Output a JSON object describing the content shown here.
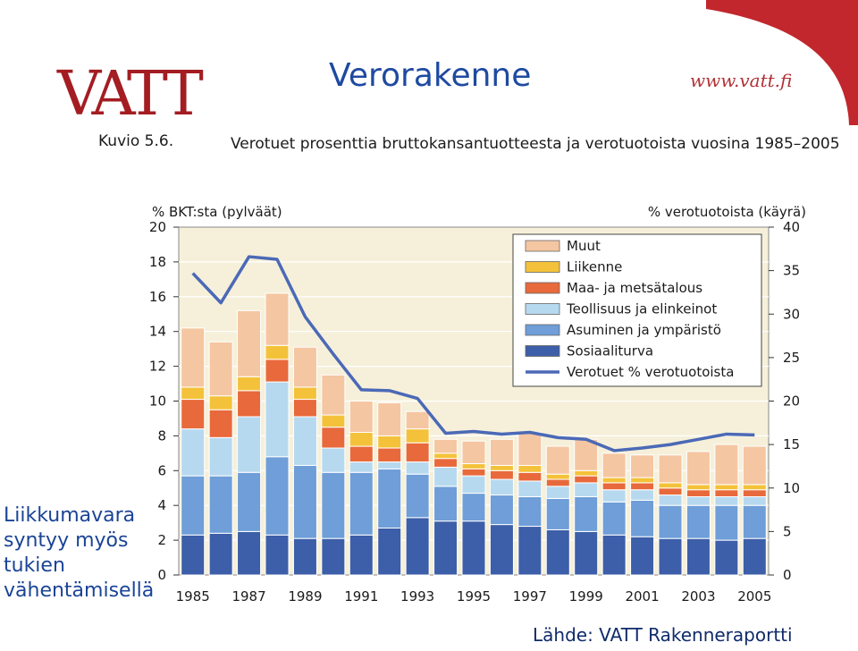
{
  "header": {
    "logo_text": "VATT",
    "title": "Verorakenne",
    "url": "www.vatt.fi"
  },
  "figure": {
    "label": "Kuvio 5.6.",
    "caption": "Verotuet prosenttia bruttokansantuotteesta ja verotuotoista vuosina 1985–2005"
  },
  "side_note": [
    "Liikkumavara",
    "syntyy myös",
    "tukien",
    "vähentämisellä"
  ],
  "source": "Lähde: VATT  Rakenneraportti",
  "colors": {
    "accent_red": "#a31d22",
    "title_blue": "#1e4aa0",
    "plot_bg": "#f6f0da"
  },
  "chart_data": {
    "type": "bar",
    "title": "",
    "left_axis_label": "% BKT:sta (pylväät)",
    "right_axis_label": "% verotuotoista (käyrä)",
    "ylim": [
      0,
      20
    ],
    "y2lim": [
      0,
      40
    ],
    "yticks": [
      0,
      2,
      4,
      6,
      8,
      10,
      12,
      14,
      16,
      18,
      20
    ],
    "y2ticks": [
      0,
      5,
      10,
      15,
      20,
      25,
      30,
      35,
      40
    ],
    "categories": [
      1985,
      1986,
      1987,
      1988,
      1989,
      1990,
      1991,
      1992,
      1993,
      1994,
      1995,
      1996,
      1997,
      1998,
      1999,
      2000,
      2001,
      2002,
      2003,
      2004,
      2005
    ],
    "xtick_labels": [
      "1985",
      "1987",
      "1989",
      "1991",
      "1993",
      "1995",
      "1997",
      "1999",
      "2001",
      "2003",
      "2005"
    ],
    "stacked": true,
    "legend_position": "top-right",
    "series": [
      {
        "name": "Sosiaaliturva",
        "color": "#3d5ea8",
        "values": [
          2.3,
          2.4,
          2.5,
          2.3,
          2.1,
          2.1,
          2.3,
          2.7,
          3.3,
          3.1,
          3.1,
          2.9,
          2.8,
          2.6,
          2.5,
          2.3,
          2.2,
          2.1,
          2.1,
          2.0,
          2.1
        ]
      },
      {
        "name": "Asuminen ja ympäristö",
        "color": "#6f9ed8",
        "values": [
          3.4,
          3.3,
          3.4,
          4.5,
          4.2,
          3.8,
          3.6,
          3.4,
          2.5,
          2.0,
          1.6,
          1.7,
          1.7,
          1.8,
          2.0,
          1.9,
          2.1,
          1.9,
          1.9,
          2.0,
          1.9
        ]
      },
      {
        "name": "Teollisuus ja elinkeinot",
        "color": "#b7d9ef",
        "values": [
          2.7,
          2.2,
          3.2,
          4.3,
          2.8,
          1.4,
          0.6,
          0.4,
          0.7,
          1.1,
          1.0,
          0.9,
          0.9,
          0.7,
          0.8,
          0.7,
          0.6,
          0.6,
          0.5,
          0.5,
          0.5
        ]
      },
      {
        "name": "Maa- ja metsätalous",
        "color": "#e8693b",
        "values": [
          1.7,
          1.6,
          1.5,
          1.3,
          1.0,
          1.2,
          0.9,
          0.8,
          1.1,
          0.5,
          0.4,
          0.5,
          0.5,
          0.4,
          0.4,
          0.4,
          0.4,
          0.4,
          0.4,
          0.4,
          0.4
        ]
      },
      {
        "name": "Liikenne",
        "color": "#f4c23a",
        "values": [
          0.7,
          0.8,
          0.8,
          0.8,
          0.7,
          0.7,
          0.8,
          0.7,
          0.8,
          0.3,
          0.3,
          0.3,
          0.4,
          0.3,
          0.3,
          0.3,
          0.3,
          0.3,
          0.3,
          0.3,
          0.3
        ]
      },
      {
        "name": "Muut",
        "color": "#f5c6a2",
        "values": [
          3.4,
          3.1,
          3.8,
          3.0,
          2.3,
          2.3,
          1.8,
          1.9,
          1.0,
          0.8,
          1.3,
          1.5,
          1.9,
          1.6,
          1.8,
          1.4,
          1.3,
          1.6,
          1.9,
          2.3,
          2.2
        ]
      }
    ],
    "line_series": {
      "name": "Verotuet % verotuotoista",
      "color": "#4b69b6",
      "axis": "right",
      "values": [
        34.7,
        31.3,
        36.6,
        36.3,
        29.7,
        25.4,
        21.3,
        21.2,
        20.3,
        16.3,
        16.5,
        16.2,
        16.4,
        15.8,
        15.6,
        14.3,
        14.6,
        15.0,
        15.6,
        16.2,
        16.1
      ]
    }
  }
}
